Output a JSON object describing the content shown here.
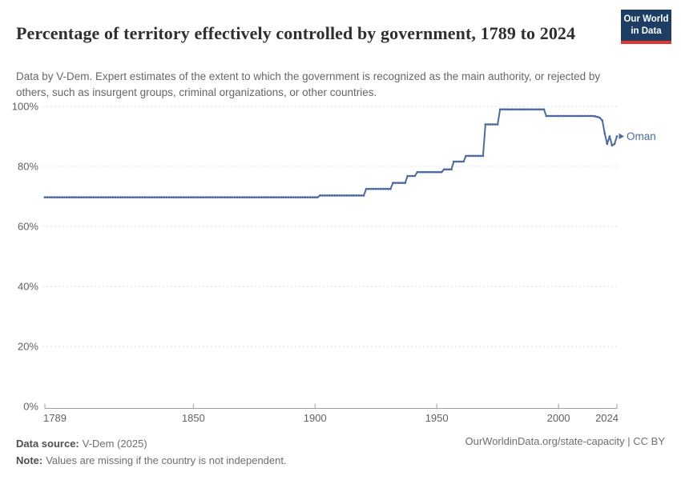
{
  "header": {
    "title": "Percentage of territory effectively controlled by government, 1789 to 2024",
    "subtitle": "Data by V-Dem. Expert estimates of the extent to which the government is recognized as the main authority, or rejected by others, such as insurgent groups, criminal organizations, or other countries.",
    "logo": {
      "line1": "Our World",
      "line2": "in Data",
      "bg_color": "#1d3d63",
      "accent_color": "#e0362c"
    }
  },
  "chart_data": {
    "type": "line",
    "title": "Percentage of territory effectively controlled by government, 1789 to 2024",
    "xlabel": "",
    "ylabel": "",
    "xlim": [
      1789,
      2024
    ],
    "ylim": [
      0,
      100
    ],
    "x_ticks": [
      1789,
      1850,
      1900,
      1950,
      2000,
      2024
    ],
    "y_ticks": [
      0,
      20,
      40,
      60,
      80,
      100
    ],
    "y_tick_suffix": "%",
    "grid": true,
    "grid_color": "#dcdcdc",
    "axis_color": "#9e9e9e",
    "tick_label_color": "#616161",
    "legend_position": "end-of-line",
    "series": [
      {
        "name": "Oman",
        "color": "#4c6a9c",
        "interpolation": "step",
        "step_segments": [
          [
            1789,
            1901,
            69.7
          ],
          [
            1902,
            1920,
            70.3
          ],
          [
            1921,
            1931,
            72.5
          ],
          [
            1932,
            1937,
            74.5
          ],
          [
            1938,
            1941,
            76.8
          ],
          [
            1942,
            1952,
            78.1
          ],
          [
            1953,
            1956,
            79.0
          ],
          [
            1957,
            1961,
            81.6
          ],
          [
            1962,
            1969,
            83.5
          ],
          [
            1970,
            1975,
            94.0
          ],
          [
            1976,
            1994,
            99.0
          ],
          [
            1995,
            2014,
            96.8
          ]
        ],
        "annual_points": [
          [
            2015,
            96.7
          ],
          [
            2016,
            96.5
          ],
          [
            2017,
            96.2
          ],
          [
            2018,
            95.3
          ],
          [
            2019,
            91.0
          ],
          [
            2020,
            87.5
          ],
          [
            2021,
            90.0
          ],
          [
            2022,
            87.0
          ],
          [
            2023,
            87.5
          ],
          [
            2024,
            90.0
          ]
        ]
      }
    ]
  },
  "footer": {
    "source_label": "Data source:",
    "source_text": "V-Dem (2025)",
    "note_label": "Note:",
    "note_text": "Values are missing if the country is not independent.",
    "right_text": "OurWorldinData.org/state-capacity | CC BY"
  }
}
